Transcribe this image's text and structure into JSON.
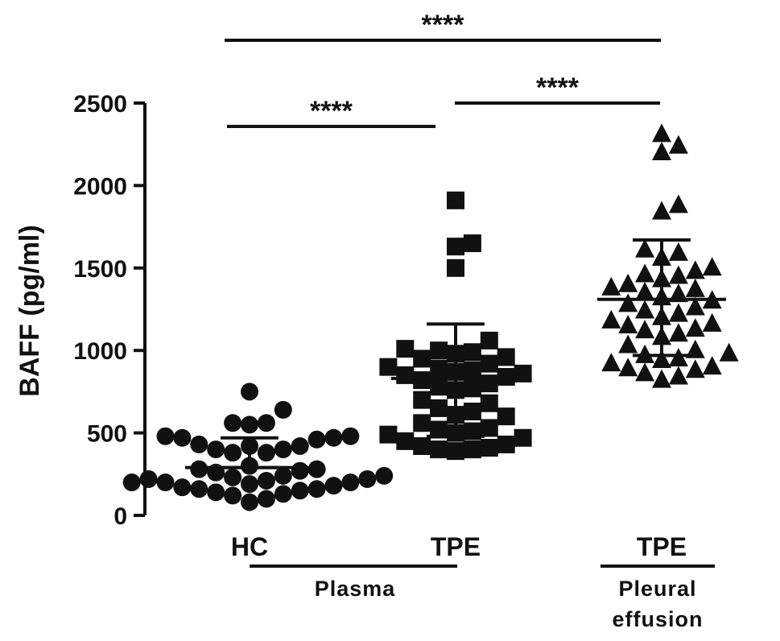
{
  "chart_data": {
    "type": "scatter",
    "ylabel": "BAFF (pg/ml)",
    "ylim": [
      0,
      2500
    ],
    "yticks": [
      0,
      500,
      1000,
      1500,
      2000,
      2500
    ],
    "grid": false,
    "categories": [
      "HC",
      "TPE",
      "TPE"
    ],
    "groups": [
      {
        "label": "Plasma",
        "categories": [
          0,
          1
        ]
      },
      {
        "label": "Pleural\neffusion",
        "categories": [
          2
        ]
      }
    ],
    "series": [
      {
        "category": "HC",
        "marker": "circle",
        "mean": 290,
        "sd_upper": 470,
        "sd_lower": 290,
        "values": [
          750,
          640,
          560,
          560,
          550,
          480,
          470,
          470,
          480,
          460,
          430,
          420,
          420,
          400,
          400,
          380,
          380,
          300,
          280,
          280,
          270,
          260,
          240,
          240,
          230,
          220,
          220,
          210,
          200,
          200,
          200,
          190,
          180,
          170,
          160,
          160,
          150,
          140,
          130,
          120,
          100,
          80
        ]
      },
      {
        "category": "TPE",
        "marker": "square",
        "mean": 830,
        "sd_upper": 1160,
        "sd_lower": 480,
        "values": [
          1910,
          1650,
          1630,
          1500,
          1060,
          1010,
          1000,
          990,
          980,
          960,
          950,
          920,
          900,
          890,
          880,
          870,
          860,
          850,
          840,
          820,
          800,
          780,
          770,
          760,
          700,
          680,
          650,
          630,
          610,
          600,
          560,
          530,
          520,
          510,
          500,
          490,
          470,
          450,
          430,
          420,
          410,
          400,
          400,
          390
        ]
      },
      {
        "category": "TPE",
        "marker": "triangle",
        "mean": 1310,
        "sd_upper": 1670,
        "sd_lower": 970,
        "values": [
          2310,
          2240,
          2200,
          1880,
          1840,
          1610,
          1590,
          1560,
          1500,
          1480,
          1460,
          1450,
          1430,
          1400,
          1380,
          1370,
          1350,
          1340,
          1320,
          1300,
          1280,
          1260,
          1240,
          1220,
          1200,
          1180,
          1160,
          1150,
          1130,
          1120,
          1100,
          1080,
          1030,
          1000,
          980,
          970,
          950,
          940,
          920,
          900,
          890,
          880,
          860,
          840,
          820
        ]
      }
    ],
    "significance": [
      {
        "from": 0,
        "to": 1,
        "label": "****"
      },
      {
        "from": 1,
        "to": 2,
        "label": "****"
      },
      {
        "from": 0,
        "to": 2,
        "label": "****"
      }
    ]
  }
}
